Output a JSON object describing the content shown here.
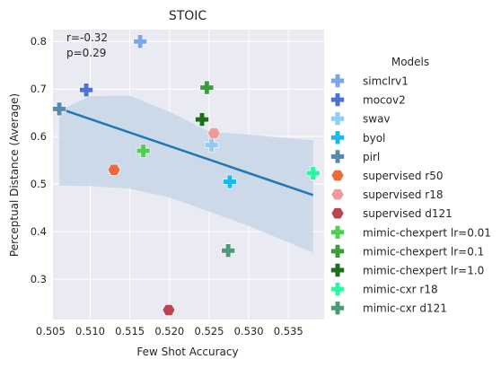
{
  "chart_data": {
    "type": "scatter",
    "title": "STOIC",
    "xlabel": "Few Shot Accuracy",
    "ylabel": "Perceptual Distance (Average)",
    "xlim": [
      0.5053,
      0.5395
    ],
    "ylim": [
      0.215,
      0.825
    ],
    "xticks": [
      "0.505",
      "0.510",
      "0.515",
      "0.520",
      "0.525",
      "0.530",
      "0.535"
    ],
    "xtick_values": [
      0.505,
      0.51,
      0.515,
      0.52,
      0.525,
      0.53,
      0.535
    ],
    "yticks": [
      "0.3",
      "0.4",
      "0.5",
      "0.6",
      "0.7",
      "0.8"
    ],
    "ytick_values": [
      0.3,
      0.4,
      0.5,
      0.6,
      0.7,
      0.8
    ],
    "grid": true,
    "background": "#eaeaf2",
    "annotation": [
      "r=-0.32",
      "p=0.29"
    ],
    "legend_title": "Models",
    "legend_position": "outside-right",
    "regression": {
      "color": "#1f77b4",
      "x": [
        0.5061,
        0.5381
      ],
      "y": [
        0.659,
        0.477
      ],
      "ci_band_color": "#c5d6e8",
      "ci_upper": [
        [
          0.5061,
          0.655
        ],
        [
          0.51,
          0.685
        ],
        [
          0.515,
          0.686
        ],
        [
          0.52,
          0.652
        ],
        [
          0.525,
          0.61
        ],
        [
          0.53,
          0.604
        ],
        [
          0.5381,
          0.592
        ]
      ],
      "ci_lower": [
        [
          0.5061,
          0.497
        ],
        [
          0.51,
          0.496
        ],
        [
          0.515,
          0.49
        ],
        [
          0.52,
          0.472
        ],
        [
          0.525,
          0.442
        ],
        [
          0.53,
          0.412
        ],
        [
          0.5381,
          0.356
        ]
      ]
    },
    "series": [
      {
        "name": "simclrv1",
        "marker": "plus",
        "color": "#7ea6e6",
        "x": 0.5163,
        "y": 0.8
      },
      {
        "name": "mocov2",
        "marker": "plus",
        "color": "#4c72d8",
        "x": 0.5095,
        "y": 0.698
      },
      {
        "name": "swav",
        "marker": "plus",
        "color": "#92cbf5",
        "x": 0.5253,
        "y": 0.582
      },
      {
        "name": "byol",
        "marker": "plus",
        "color": "#1ab8f0",
        "x": 0.5276,
        "y": 0.505
      },
      {
        "name": "pirl",
        "marker": "plus",
        "color": "#5b88ad",
        "x": 0.5061,
        "y": 0.658
      },
      {
        "name": "supervised r50",
        "marker": "hexagon",
        "color": "#ee6a3a",
        "x": 0.513,
        "y": 0.53
      },
      {
        "name": "supervised r18",
        "marker": "hexagon",
        "color": "#f39898",
        "x": 0.5256,
        "y": 0.607
      },
      {
        "name": "supervised d121",
        "marker": "hexagon",
        "color": "#b94552",
        "x": 0.5199,
        "y": 0.235
      },
      {
        "name": "mimic-chexpert lr=0.01",
        "marker": "plus",
        "color": "#52cc52",
        "x": 0.5167,
        "y": 0.57
      },
      {
        "name": "mimic-chexpert lr=0.1",
        "marker": "plus",
        "color": "#3c9b3c",
        "x": 0.5247,
        "y": 0.703
      },
      {
        "name": "mimic-chexpert lr=1.0",
        "marker": "plus",
        "color": "#1c6e1c",
        "x": 0.5241,
        "y": 0.636
      },
      {
        "name": "mimic-cxr r18",
        "marker": "plus",
        "color": "#2ef5a0",
        "x": 0.5381,
        "y": 0.523
      },
      {
        "name": "mimic-cxr d121",
        "marker": "plus",
        "color": "#4d9a78",
        "x": 0.5274,
        "y": 0.36
      }
    ]
  }
}
